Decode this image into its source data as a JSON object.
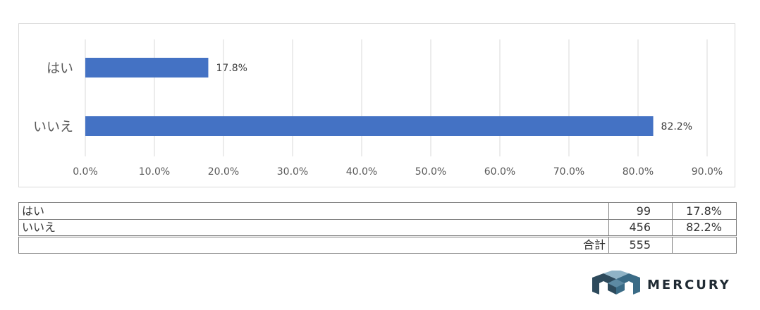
{
  "chart_data": {
    "type": "bar",
    "orientation": "horizontal",
    "categories": [
      "はい",
      "いいえ"
    ],
    "values": [
      17.8,
      82.2
    ],
    "value_labels": [
      "17.8%",
      "82.2%"
    ],
    "xlim": [
      0,
      90
    ],
    "x_ticks": [
      "0.0%",
      "10.0%",
      "20.0%",
      "30.0%",
      "40.0%",
      "50.0%",
      "60.0%",
      "70.0%",
      "80.0%",
      "90.0%"
    ],
    "grid": true,
    "bar_color": "#4472c4",
    "title": "",
    "xlabel": "",
    "ylabel": ""
  },
  "table": {
    "rows": [
      {
        "label": "はい",
        "count": "99",
        "percent": "17.8%"
      },
      {
        "label": "いいえ",
        "count": "456",
        "percent": "82.2%"
      }
    ],
    "total_label": "合計",
    "total_count": "555"
  },
  "logo": {
    "text": "MERCURY",
    "icon": "mercury-m-logo-icon"
  }
}
